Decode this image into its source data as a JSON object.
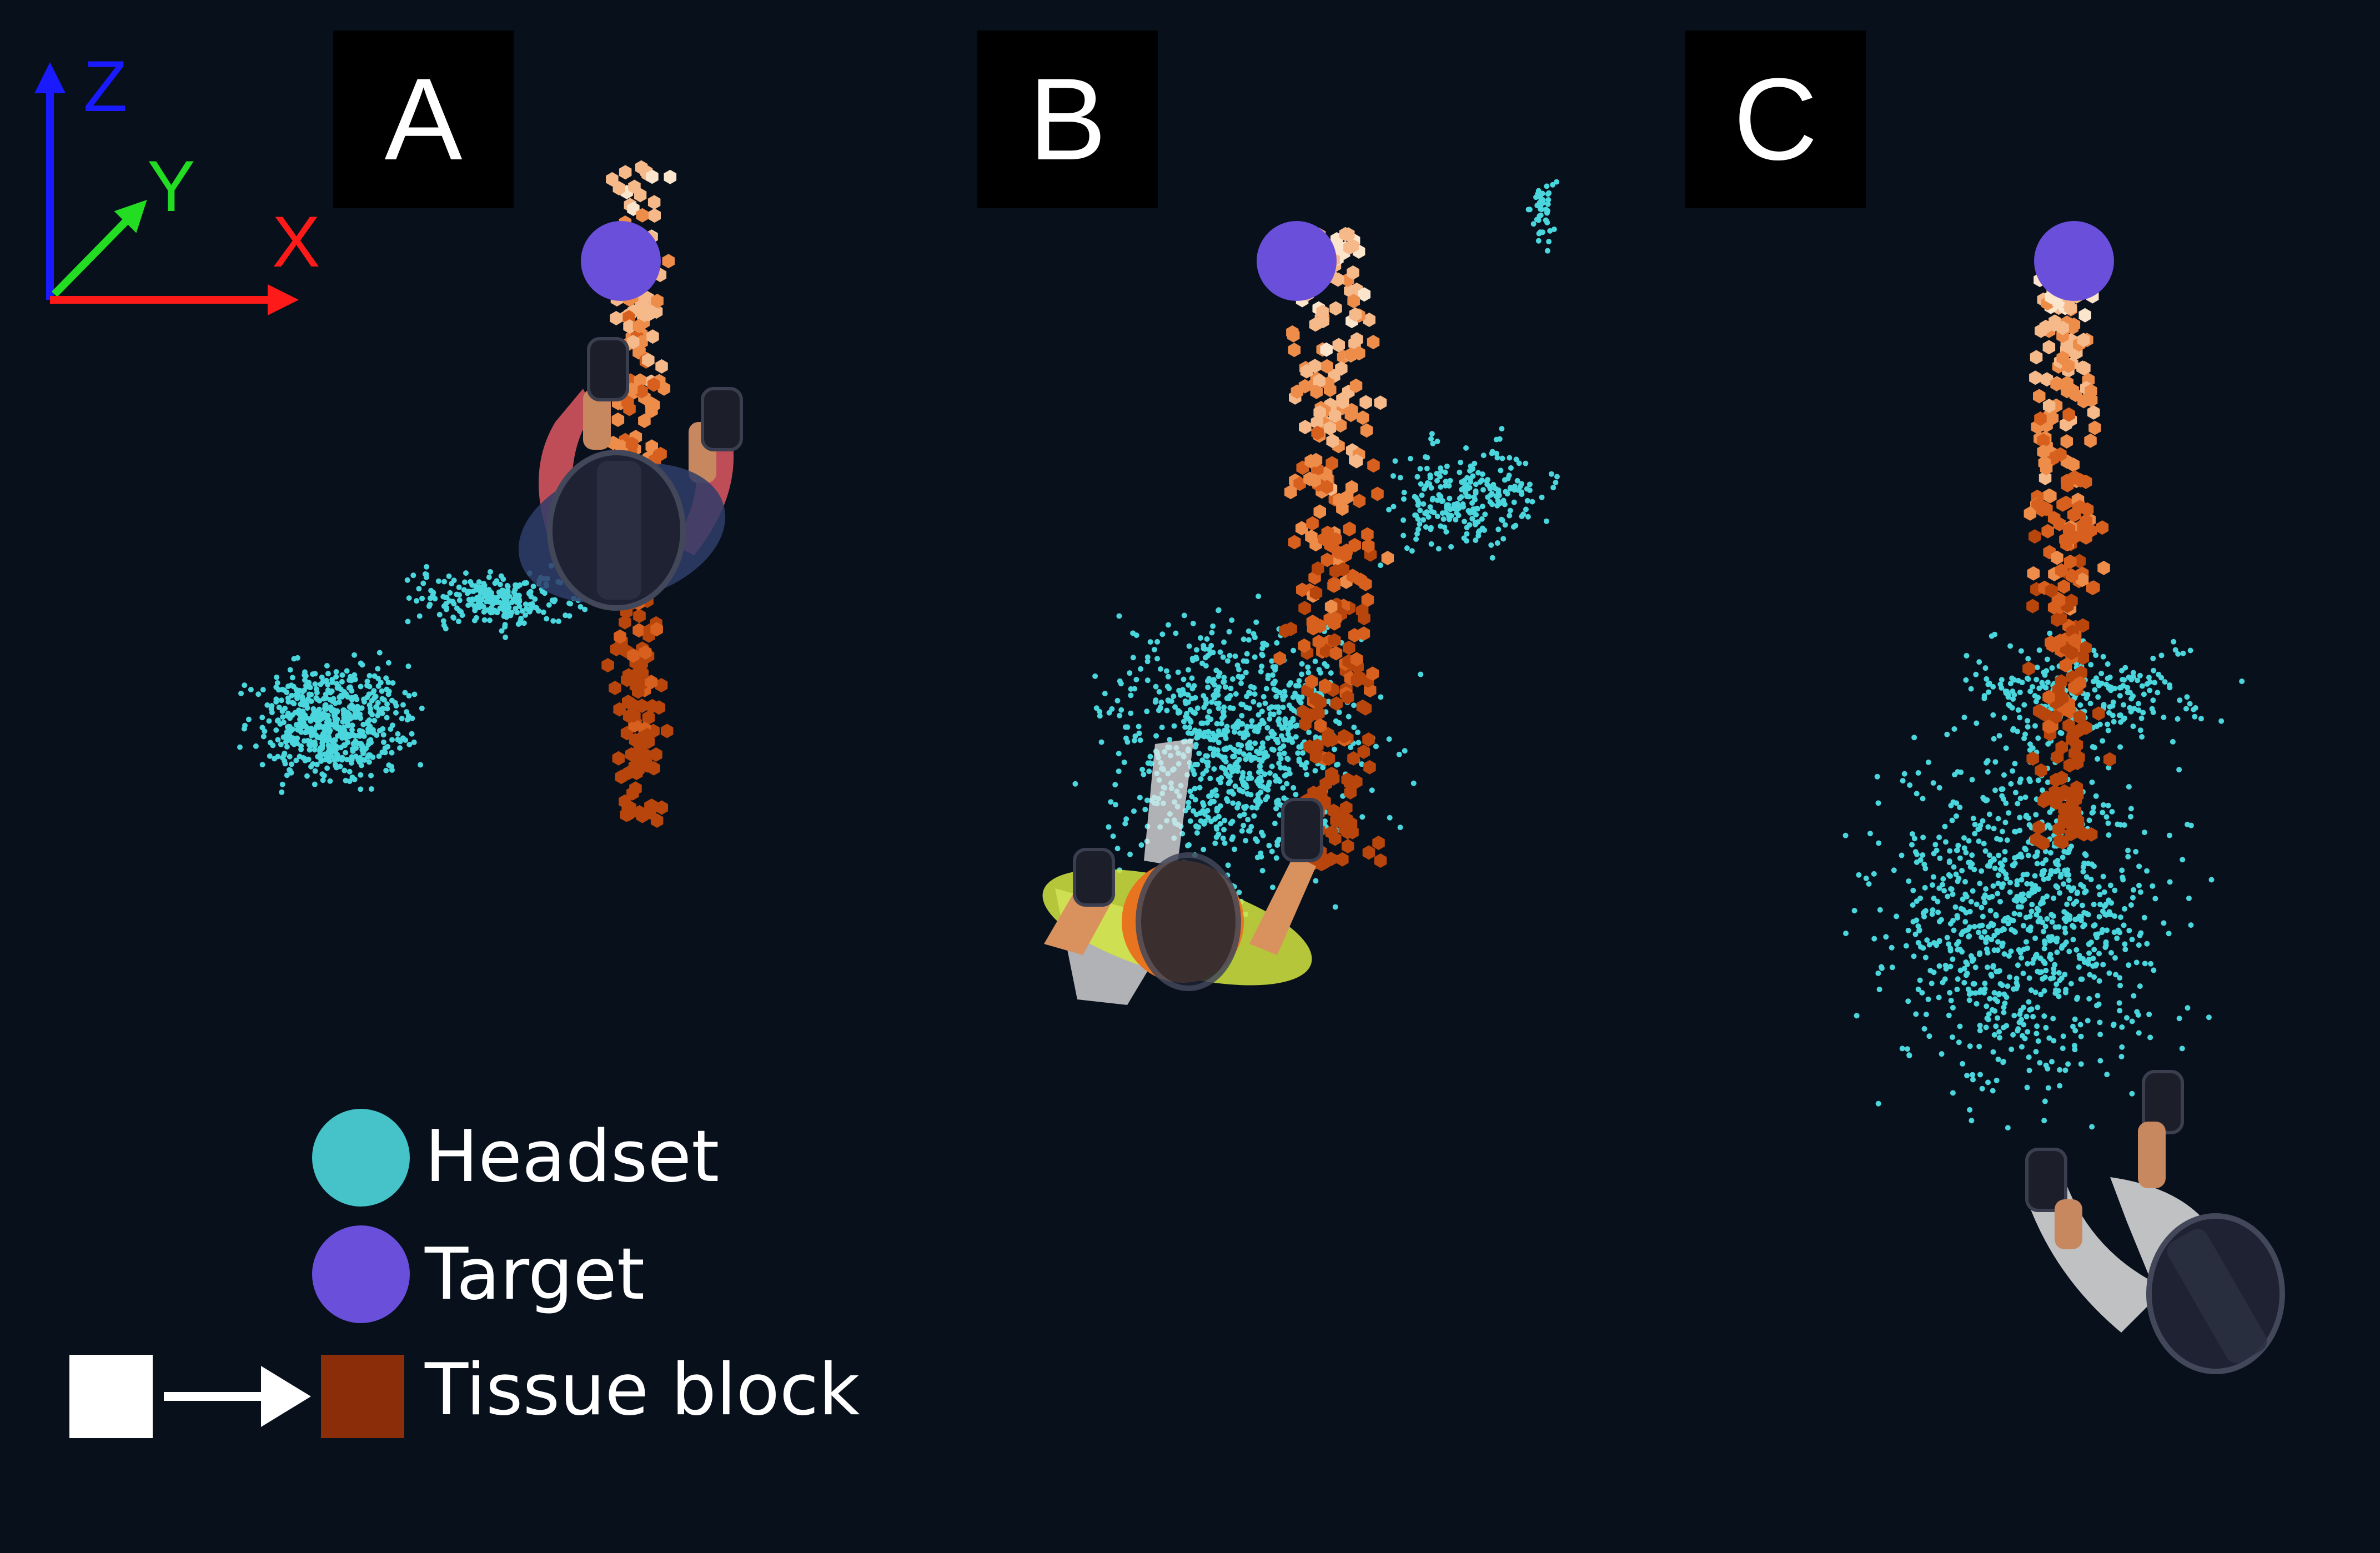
{
  "panels": [
    {
      "label": "A"
    },
    {
      "label": "B"
    },
    {
      "label": "C"
    }
  ],
  "axes": {
    "z": "Z",
    "y": "Y",
    "x": "X",
    "z_color": "#1a1aff",
    "y_color": "#22dd22",
    "x_color": "#ff1a1a"
  },
  "legend": {
    "headset": "Headset",
    "target": "Target",
    "tissue_block": "Tissue block",
    "headset_color": "#45c3c9",
    "target_color": "#6a4fdb",
    "tissue_from_color": "#ffffff",
    "tissue_to_color": "#8c2d0a"
  },
  "colors": {
    "background": "#08101c",
    "headset_points": "#4ad6dc",
    "tissue_scale": [
      "#fbe5cc",
      "#f5b98a",
      "#ee8c4a",
      "#d8601e",
      "#b8460c"
    ],
    "target": "#6a4fdb"
  }
}
